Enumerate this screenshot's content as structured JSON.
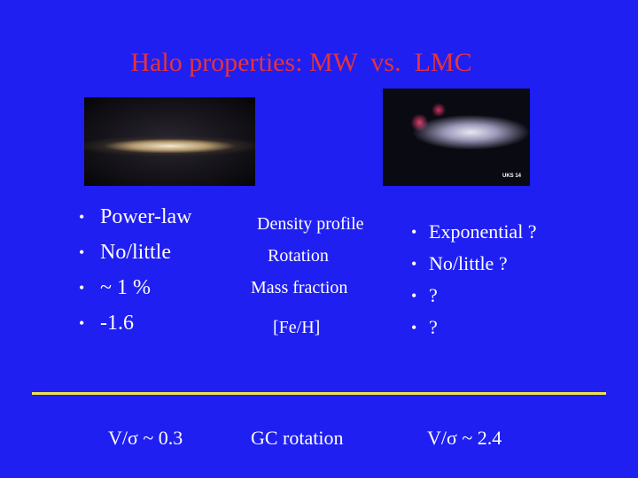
{
  "title": "Halo properties: MW  vs.  LMC",
  "image_caption": "UKS 14",
  "mw_properties": [
    "Power-law",
    "No/little",
    "~ 1 %",
    "-1.6"
  ],
  "property_names": [
    "Density profile",
    "Rotation",
    "Mass fraction",
    "[Fe/H]"
  ],
  "lmc_properties": [
    "Exponential ?",
    "No/little ?",
    "?",
    "?"
  ],
  "footer": {
    "mw": "V/σ ~ 0.3",
    "middle": "GC rotation",
    "lmc": "V/σ ~ 2.4"
  }
}
